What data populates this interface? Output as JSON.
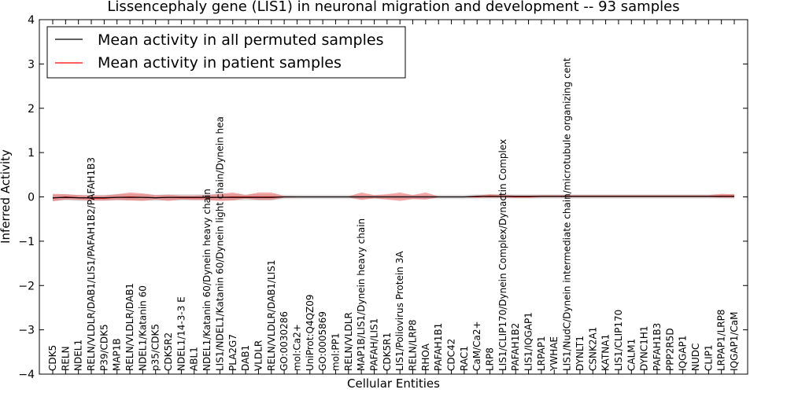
{
  "chart_data": {
    "type": "line",
    "title": "Lissencephaly gene (LIS1) in neuronal migration and development -- 93 samples",
    "xlabel": "Cellular Entities",
    "ylabel": "Inferred Activity",
    "ylim": [
      -4,
      4
    ],
    "yticks": [
      -4,
      -3,
      -2,
      -1,
      0,
      1,
      2,
      3,
      4
    ],
    "ytick_labels": [
      "−4",
      "−3",
      "−2",
      "−1",
      "0",
      "1",
      "2",
      "3",
      "4"
    ],
    "legend": {
      "location": "upper-left",
      "entries": [
        {
          "label": "Mean activity in all permuted samples",
          "color": "#000000"
        },
        {
          "label": "Mean activity in patient samples",
          "color": "#ff0000"
        }
      ]
    },
    "categories": [
      "CDK5",
      "RELN",
      "NDEL1",
      "RELN/VLDLR/DAB1/LIS1/PAFAH1B2/PAFAH1B3",
      "P39/CDK5",
      "MAP1B",
      "RELN/VLDLR/DAB1",
      "NDEL1/Katanin 60",
      "p35/CDK5",
      "CDK5R2",
      "NDEL1/14-3-3 E",
      "ABL1",
      "NDEL1/Katanin 60/Dynein heavy chain",
      "LIS1/NDEL1/Katanin 60/Dynein light chain/Dynein hea",
      "PLA2G7",
      "DAB1",
      "VLDLR",
      "RELN/VLDLR/DAB1/LIS1",
      "GO:0030286",
      "mol:Ca2+",
      "UniProt:Q4QZ09",
      "GO:0005869",
      "mol:PP1",
      "RELN/VLDLR",
      "MAP1B/LIS1/Dynein heavy chain",
      "PAFAH/LIS1",
      "CDK5R1",
      "LIS1/Poliovirus Protein 3A",
      "RELN/LRP8",
      "RHOA",
      "PAFAH1B1",
      "CDC42",
      "RAC1",
      "CaM/Ca2+",
      "LRP8",
      "LIS1/CLIP170/Dynein Complex/Dynactin Complex",
      "PAFAH1B2",
      "LIS1/IQGAP1",
      "LRPAP1",
      "YWHAE",
      "LIS1/NudC/Dynein intermediate chain/microtubule organizing cent",
      "DYNLT1",
      "CSNK2A1",
      "KATNA1",
      "LIS1/CLIP170",
      "CALM1",
      "DYNC1H1",
      "PAFAH1B3",
      "PPP2R5D",
      "IQGAP1",
      "NUDC",
      "CLIP1",
      "LRPAP1/LRP8",
      "IQGAP1/CaM"
    ],
    "series": [
      {
        "name": "Mean activity in all permuted samples",
        "color": "#000000",
        "values": [
          -0.02,
          -0.01,
          -0.02,
          -0.02,
          -0.02,
          -0.01,
          -0.01,
          -0.01,
          -0.02,
          -0.01,
          -0.01,
          -0.01,
          -0.01,
          -0.01,
          -0.01,
          -0.01,
          -0.01,
          -0.01,
          0.0,
          0.0,
          0.0,
          0.0,
          0.0,
          0.0,
          0.0,
          0.0,
          0.0,
          0.0,
          0.0,
          0.0,
          0.0,
          0.0,
          0.0,
          0.01,
          0.01,
          0.01,
          0.01,
          0.01,
          0.01,
          0.01,
          0.01,
          0.01,
          0.01,
          0.01,
          0.01,
          0.01,
          0.01,
          0.01,
          0.01,
          0.01,
          0.01,
          0.01,
          0.01,
          0.01
        ],
        "band_upper": [
          0.05,
          0.06,
          0.05,
          0.05,
          0.05,
          0.06,
          0.06,
          0.06,
          0.05,
          0.06,
          0.06,
          0.06,
          0.06,
          0.06,
          0.06,
          0.06,
          0.06,
          0.06,
          0.05,
          0.05,
          0.05,
          0.05,
          0.05,
          0.05,
          0.05,
          0.05,
          0.05,
          0.05,
          0.05,
          0.05,
          0.05,
          0.05,
          0.05,
          0.06,
          0.06,
          0.06,
          0.06,
          0.06,
          0.06,
          0.06,
          0.06,
          0.06,
          0.06,
          0.06,
          0.06,
          0.06,
          0.06,
          0.06,
          0.06,
          0.06,
          0.06,
          0.06,
          0.06,
          0.06
        ],
        "band_lower": [
          -0.09,
          -0.08,
          -0.09,
          -0.09,
          -0.09,
          -0.08,
          -0.08,
          -0.08,
          -0.09,
          -0.08,
          -0.08,
          -0.08,
          -0.08,
          -0.08,
          -0.08,
          -0.08,
          -0.08,
          -0.08,
          -0.05,
          -0.05,
          -0.05,
          -0.05,
          -0.05,
          -0.05,
          -0.05,
          -0.05,
          -0.05,
          -0.05,
          -0.05,
          -0.05,
          -0.05,
          -0.05,
          -0.05,
          -0.04,
          -0.04,
          -0.04,
          -0.04,
          -0.04,
          -0.04,
          -0.04,
          -0.04,
          -0.04,
          -0.04,
          -0.04,
          -0.04,
          -0.04,
          -0.04,
          -0.04,
          -0.04,
          -0.04,
          -0.04,
          -0.04,
          -0.04,
          -0.04
        ]
      },
      {
        "name": "Mean activity in patient samples",
        "color": "#ff0000",
        "values": [
          -0.03,
          0.0,
          -0.02,
          -0.03,
          -0.03,
          -0.01,
          0.0,
          -0.01,
          -0.02,
          -0.01,
          -0.02,
          -0.02,
          -0.02,
          -0.01,
          0.0,
          0.0,
          0.0,
          0.0,
          0.0,
          0.0,
          0.0,
          0.0,
          0.0,
          0.0,
          0.0,
          0.0,
          0.0,
          0.0,
          0.0,
          0.0,
          0.0,
          0.0,
          0.0,
          0.0,
          0.02,
          0.01,
          0.0,
          0.0,
          0.01,
          0.01,
          0.01,
          0.01,
          0.01,
          0.01,
          0.01,
          0.01,
          0.01,
          0.01,
          0.01,
          0.01,
          0.01,
          0.01,
          0.02,
          0.02
        ],
        "band_upper": [
          0.07,
          0.06,
          0.04,
          0.03,
          0.03,
          0.06,
          0.1,
          0.08,
          0.04,
          0.05,
          0.03,
          0.03,
          0.04,
          0.07,
          0.1,
          0.04,
          0.1,
          0.1,
          0.02,
          0.01,
          0.01,
          0.01,
          0.01,
          0.01,
          0.1,
          0.04,
          0.06,
          0.1,
          0.04,
          0.1,
          0.01,
          0.01,
          0.01,
          0.03,
          0.06,
          0.05,
          0.03,
          0.03,
          0.04,
          0.04,
          0.04,
          0.04,
          0.04,
          0.04,
          0.04,
          0.04,
          0.04,
          0.04,
          0.04,
          0.04,
          0.04,
          0.04,
          0.07,
          0.06
        ],
        "band_lower": [
          -0.1,
          -0.06,
          -0.07,
          -0.08,
          -0.08,
          -0.07,
          -0.08,
          -0.09,
          -0.06,
          -0.09,
          -0.06,
          -0.07,
          -0.07,
          -0.09,
          -0.08,
          -0.04,
          -0.07,
          -0.07,
          -0.02,
          -0.01,
          -0.01,
          -0.01,
          -0.01,
          -0.01,
          -0.07,
          -0.03,
          -0.06,
          -0.09,
          -0.05,
          -0.06,
          -0.01,
          -0.01,
          -0.01,
          -0.02,
          -0.02,
          -0.02,
          -0.02,
          -0.02,
          -0.01,
          -0.01,
          -0.01,
          -0.01,
          -0.01,
          -0.01,
          -0.01,
          -0.01,
          -0.01,
          -0.01,
          -0.01,
          -0.01,
          -0.01,
          -0.01,
          -0.02,
          -0.02
        ]
      }
    ]
  }
}
